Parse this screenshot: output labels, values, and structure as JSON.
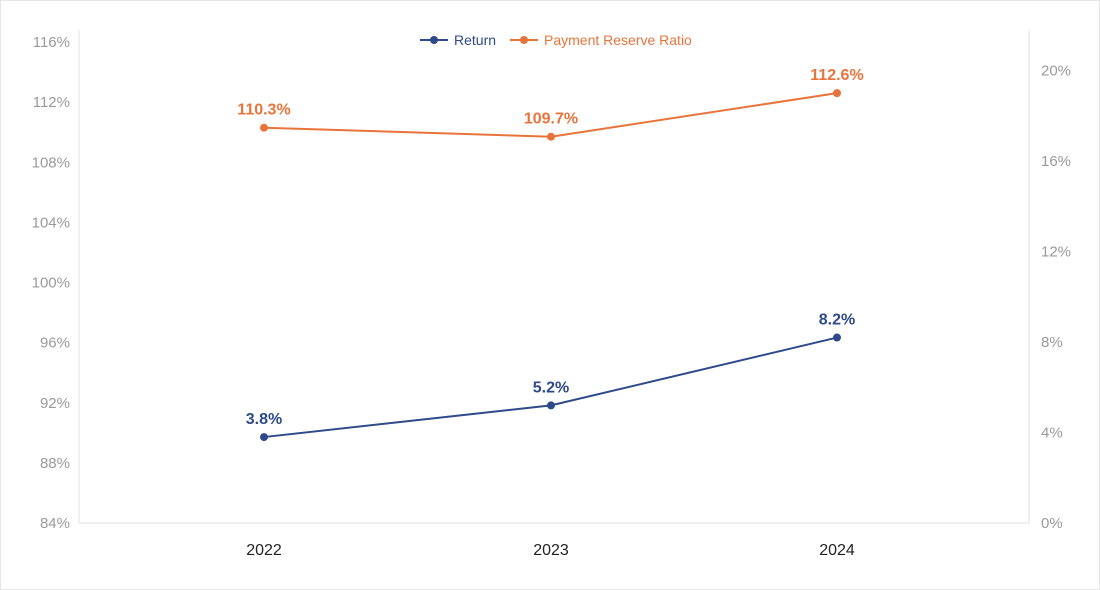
{
  "chart_data": {
    "type": "line",
    "categories": [
      "2022",
      "2023",
      "2024"
    ],
    "series": [
      {
        "name": "Return",
        "axis": "right",
        "color": "#2e4a8b",
        "values": [
          3.8,
          5.2,
          8.2
        ],
        "labels": [
          "3.8%",
          "5.2%",
          "8.2%"
        ]
      },
      {
        "name": "Payment Reserve Ratio",
        "axis": "left",
        "color": "#e8743b",
        "values": [
          110.3,
          109.7,
          112.6
        ],
        "labels": [
          "110.3%",
          "109.7%",
          "112.6%"
        ]
      }
    ],
    "y_left": {
      "min": 84,
      "max": 116.8,
      "ticks": [
        84,
        88,
        92,
        96,
        100,
        104,
        108,
        112,
        116
      ],
      "tick_labels": [
        "84%",
        "88%",
        "92%",
        "96%",
        "100%",
        "104%",
        "108%",
        "112%",
        "116%"
      ]
    },
    "y_right": {
      "min": 0,
      "max": 21.8,
      "ticks": [
        0,
        4,
        8,
        12,
        16,
        20
      ],
      "tick_labels": [
        "0%",
        "4%",
        "8%",
        "12%",
        "16%",
        "20%"
      ]
    },
    "grid": false,
    "legend": "top-center",
    "title": "",
    "xlabel": "",
    "ylabel": ""
  }
}
